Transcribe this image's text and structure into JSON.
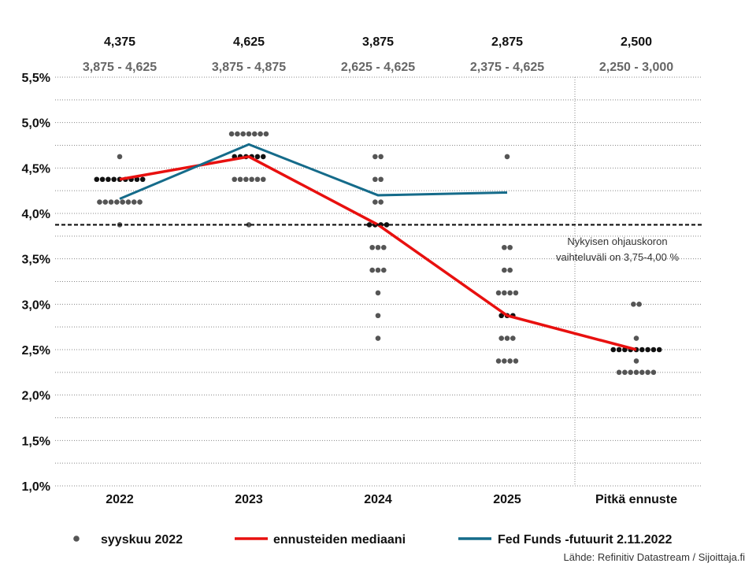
{
  "chart_data": {
    "type": "scatter",
    "title": "",
    "xlabel": "",
    "ylabel": "",
    "categories": [
      "2022",
      "2023",
      "2024",
      "2025",
      "Pitkä ennuste"
    ],
    "y_ticks": [
      "1,0%",
      "1,5%",
      "2,0%",
      "2,5%",
      "3,0%",
      "3,5%",
      "4,0%",
      "4,5%",
      "5,0%",
      "5,5%"
    ],
    "ylim": [
      1.0,
      5.5
    ],
    "grid": "horizontal dotted",
    "medians": [
      "4,375",
      "4,625",
      "3,875",
      "2,875",
      "2,500"
    ],
    "ranges": [
      "3,875 - 4,625",
      "3,875 - 4,875",
      "2,625 - 4,625",
      "2,375 - 4,625",
      "2,250 - 3,000"
    ],
    "dots": [
      {
        "category": "2022",
        "levels": [
          {
            "rate": 4.625,
            "count": 1
          },
          {
            "rate": 4.375,
            "count": 9
          },
          {
            "rate": 4.125,
            "count": 8
          },
          {
            "rate": 3.875,
            "count": 1
          }
        ]
      },
      {
        "category": "2023",
        "levels": [
          {
            "rate": 4.875,
            "count": 7
          },
          {
            "rate": 4.625,
            "count": 6
          },
          {
            "rate": 4.375,
            "count": 6
          },
          {
            "rate": 3.875,
            "count": 1
          }
        ]
      },
      {
        "category": "2024",
        "levels": [
          {
            "rate": 4.625,
            "count": 2
          },
          {
            "rate": 4.375,
            "count": 2
          },
          {
            "rate": 4.125,
            "count": 2
          },
          {
            "rate": 3.875,
            "count": 4
          },
          {
            "rate": 3.625,
            "count": 3
          },
          {
            "rate": 3.375,
            "count": 3
          },
          {
            "rate": 3.125,
            "count": 1
          },
          {
            "rate": 2.875,
            "count": 1
          },
          {
            "rate": 2.625,
            "count": 1
          }
        ]
      },
      {
        "category": "2025",
        "levels": [
          {
            "rate": 4.625,
            "count": 1
          },
          {
            "rate": 3.625,
            "count": 2
          },
          {
            "rate": 3.375,
            "count": 2
          },
          {
            "rate": 3.125,
            "count": 4
          },
          {
            "rate": 2.875,
            "count": 3
          },
          {
            "rate": 2.625,
            "count": 3
          },
          {
            "rate": 2.375,
            "count": 4
          }
        ]
      },
      {
        "category": "Pitkä ennuste",
        "levels": [
          {
            "rate": 3.0,
            "count": 2
          },
          {
            "rate": 2.625,
            "count": 1
          },
          {
            "rate": 2.5,
            "count": 9
          },
          {
            "rate": 2.375,
            "count": 1
          },
          {
            "rate": 2.25,
            "count": 7
          }
        ]
      }
    ],
    "series": [
      {
        "name": "ennusteiden mediaani",
        "color": "#e8100f",
        "categories": [
          "2022",
          "2023",
          "2024",
          "2025",
          "Pitkä ennuste"
        ],
        "values": [
          4.375,
          4.625,
          3.875,
          2.875,
          2.5
        ]
      },
      {
        "name": "Fed Funds -futuurit 2.11.2022",
        "color": "#156b8a",
        "categories": [
          "2022",
          "2023",
          "2024",
          "2025"
        ],
        "values": [
          4.16,
          4.76,
          4.2,
          4.23
        ]
      }
    ],
    "reference_line": {
      "value": 3.875,
      "annotation": [
        "Nykyisen ohjauskoron",
        "vaihteluväli on 3,75-4,00 %"
      ]
    },
    "legend": {
      "placement": "bottom",
      "items": [
        {
          "label": "syyskuu 2022",
          "symbol": "dot",
          "color": "#555555"
        },
        {
          "label": "ennusteiden mediaani",
          "symbol": "line",
          "color": "#e8100f"
        },
        {
          "label": "Fed Funds -futuurit 2.11.2022",
          "symbol": "line",
          "color": "#156b8a"
        }
      ]
    },
    "colors": {
      "dot": "#555555",
      "median_dot": "#111111",
      "range_text": "#666666"
    },
    "source": "Lähde: Refinitiv Datastream / Sijoittaja.fi"
  }
}
